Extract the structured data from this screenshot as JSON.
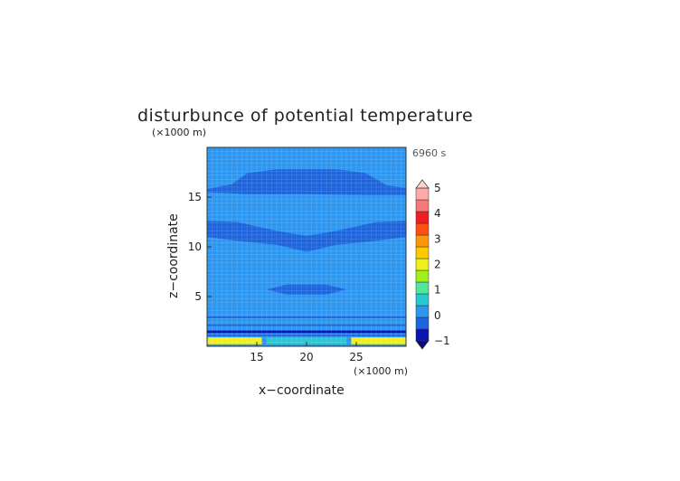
{
  "chart_data": {
    "type": "heatmap",
    "title": "disturbunce of potential temperature",
    "time_label": "6960 s",
    "xlabel": "x−coordinate",
    "ylabel": "z−coordinate",
    "x_unit": "(×1000 m)",
    "y_unit": "(×1000 m)",
    "xlim": [
      10,
      30
    ],
    "ylim": [
      0,
      20
    ],
    "x_ticks": [
      15,
      20,
      25
    ],
    "y_ticks": [
      5,
      10,
      15
    ],
    "colorbar": {
      "levels": [
        -1,
        -0.5,
        0,
        0.5,
        1,
        1.5,
        2,
        2.5,
        3,
        3.5,
        4,
        4.5,
        5
      ],
      "labels": [
        "−1",
        "0",
        "1",
        "2",
        "3",
        "4",
        "5"
      ],
      "colors": [
        "#0a14b4",
        "#1e64dc",
        "#2d96f0",
        "#28c8d2",
        "#50e69b",
        "#a0f01e",
        "#f0f019",
        "#ffc800",
        "#ff960a",
        "#ff5014",
        "#f01e1e",
        "#f57878",
        "#ffaaaa"
      ],
      "extend": "both"
    },
    "background_color": "#2d96f0",
    "bands": [
      {
        "name": "upper-dark-band",
        "value": -0.2,
        "color": "#1e64dc"
      },
      {
        "name": "mid-dark-band",
        "value": -0.2,
        "color": "#1e64dc"
      },
      {
        "name": "lower-dark-lens",
        "value": -0.2,
        "color": "#1e64dc"
      },
      {
        "name": "surface-warm-layer-left",
        "value": 2.0,
        "color": "#f0f019"
      },
      {
        "name": "surface-warm-layer-right",
        "value": 2.0,
        "color": "#f0f019"
      }
    ]
  }
}
